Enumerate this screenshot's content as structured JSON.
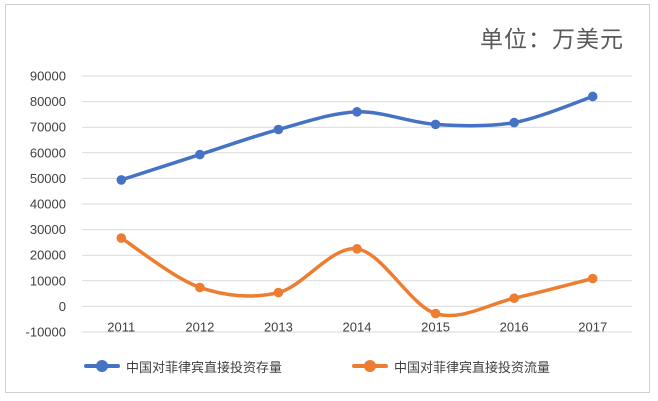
{
  "unit_text": "单位：万美元",
  "colors": {
    "stock": "#4472C4",
    "flow": "#ED7D31",
    "grid": "#D9D9D9",
    "text": "#404040"
  },
  "chart_data": {
    "type": "line",
    "categories": [
      "2011",
      "2012",
      "2013",
      "2014",
      "2015",
      "2016",
      "2017"
    ],
    "series": [
      {
        "name": "中国对菲律宾直接投资存量",
        "values": [
          49400,
          59300,
          69100,
          76000,
          71100,
          71800,
          82000
        ]
      },
      {
        "name": "中国对菲律宾直接投资流量",
        "values": [
          26700,
          7400,
          5400,
          22500,
          -2800,
          3200,
          10900
        ]
      }
    ],
    "yticks": [
      "90000",
      "80000",
      "70000",
      "60000",
      "50000",
      "40000",
      "30000",
      "20000",
      "10000",
      "0",
      "-10000"
    ],
    "ylim": [
      -10000,
      90000
    ],
    "grid": true,
    "legend_position": "bottom"
  }
}
